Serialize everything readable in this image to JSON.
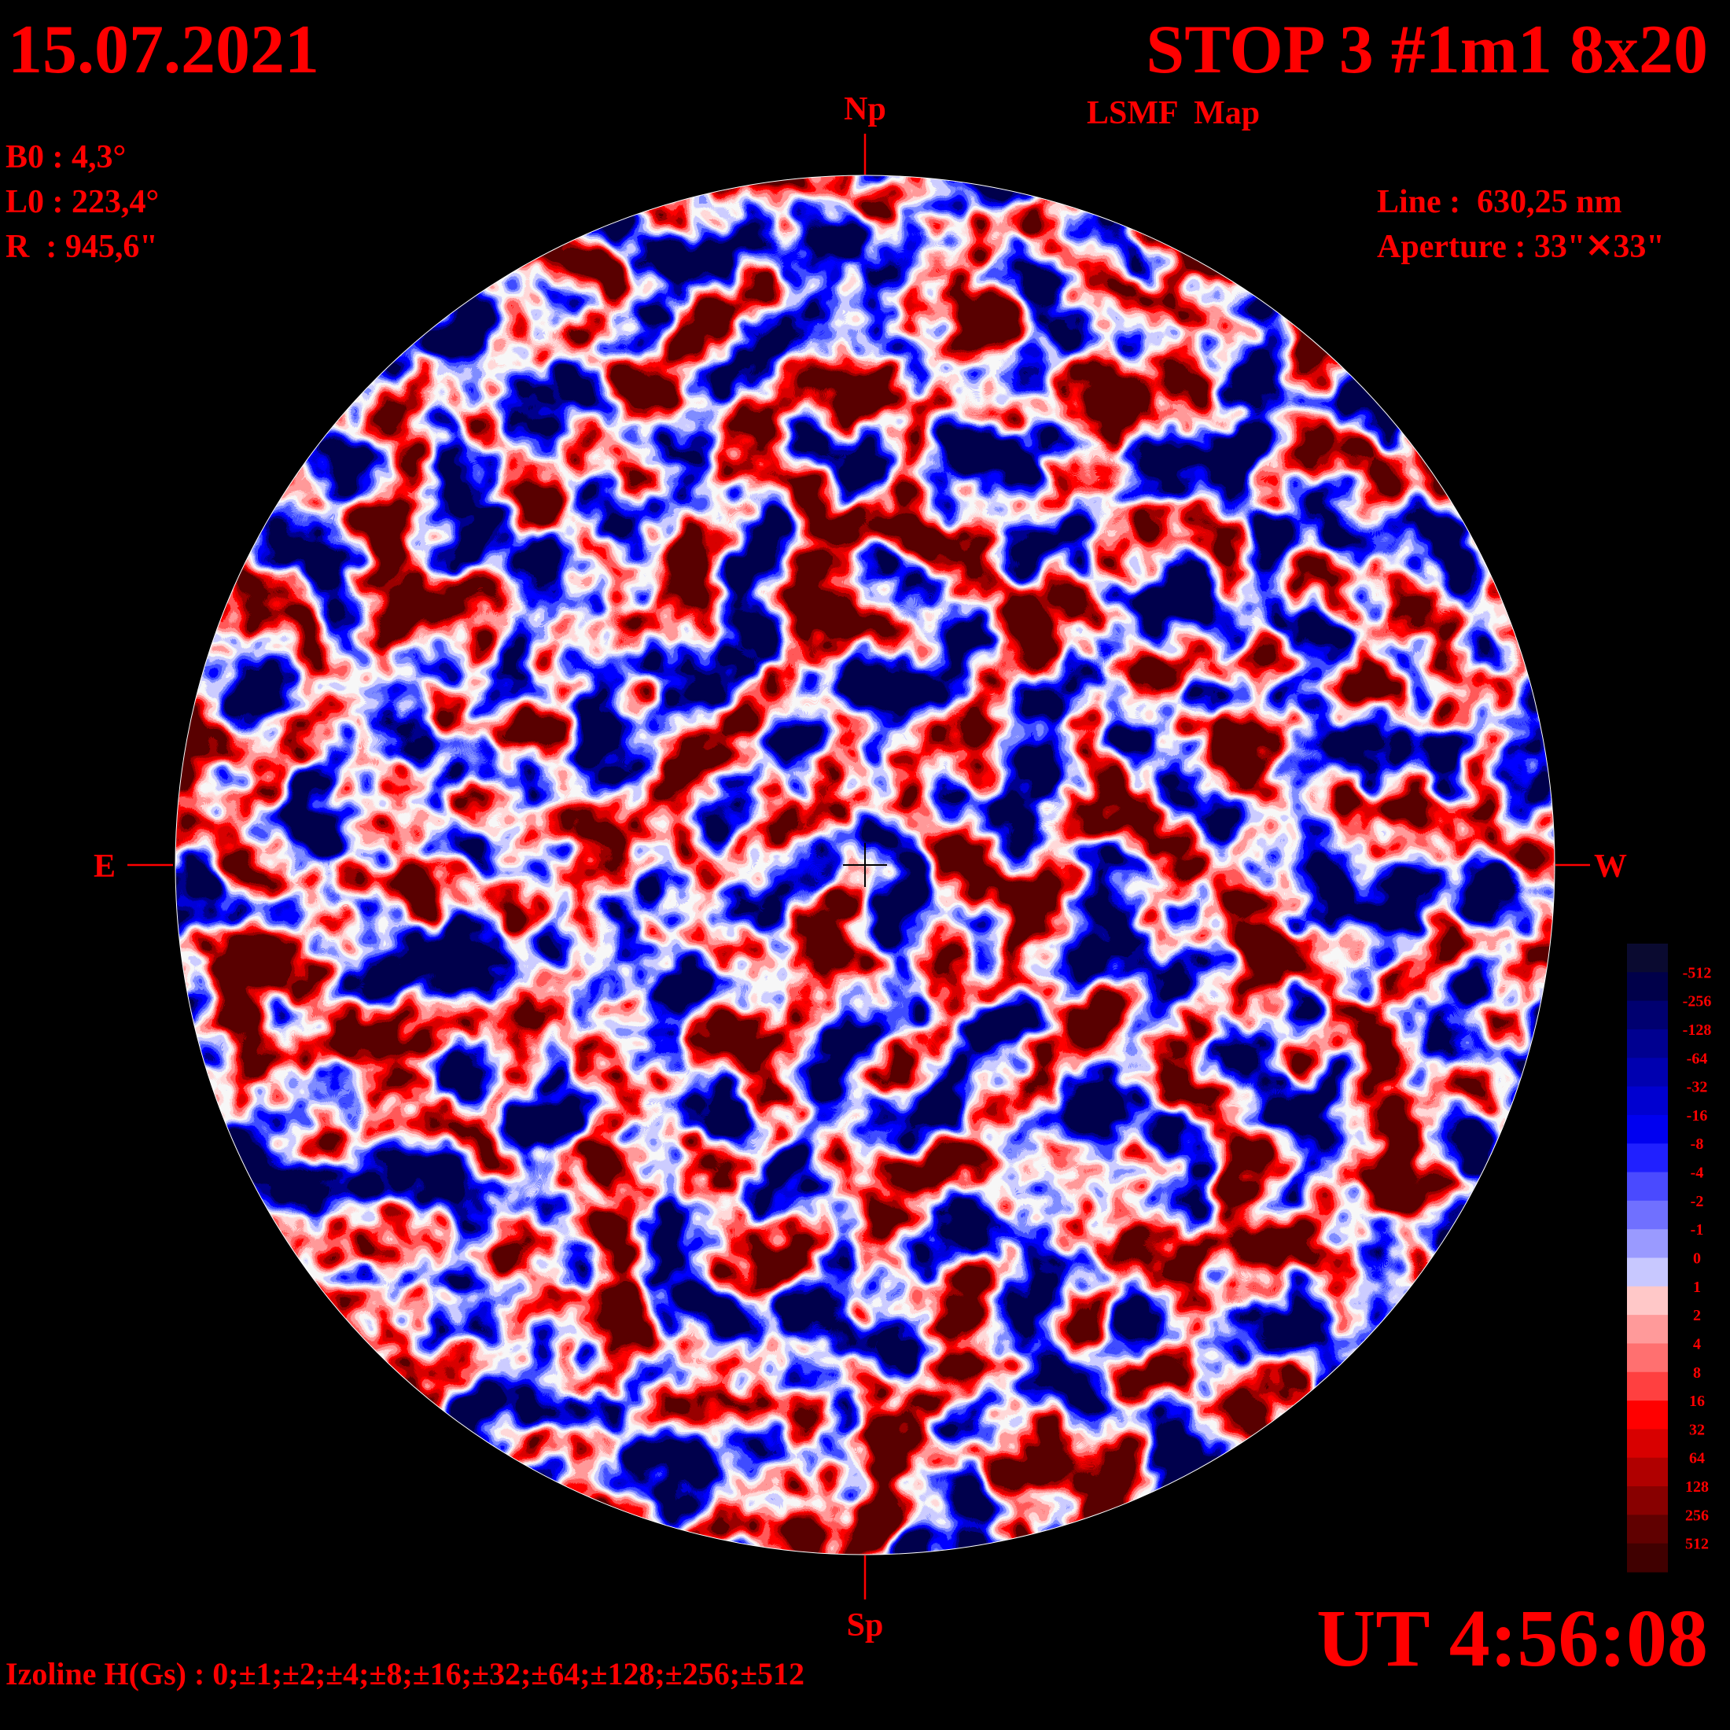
{
  "header": {
    "date": "15.07.2021",
    "title": "STOP 3 #1m1 8x20",
    "subtitle": "LSMF  Map",
    "time": "UT 4:56:08"
  },
  "parameters": [
    "B0 : 4,3°",
    "L0 : 223,4°",
    "R  : 945,6\""
  ],
  "instrument": [
    "Line :  630,25 nm",
    "Aperture : 33\"✕33\""
  ],
  "directions": {
    "north": "Np",
    "south": "Sp",
    "east": "E",
    "west": "W"
  },
  "colorbar": {
    "labels": [
      "-512",
      "-256",
      "-128",
      "-64",
      "-32",
      "-16",
      "-8",
      "-4",
      "-2",
      "-1",
      "0",
      "1",
      "2",
      "4",
      "8",
      "16",
      "32",
      "64",
      "128",
      "256",
      "512"
    ]
  },
  "footer": "Izoline H(Gs) : 0;±1;±2;±4;±8;±16;±32;±64;±128;±256;±512"
}
